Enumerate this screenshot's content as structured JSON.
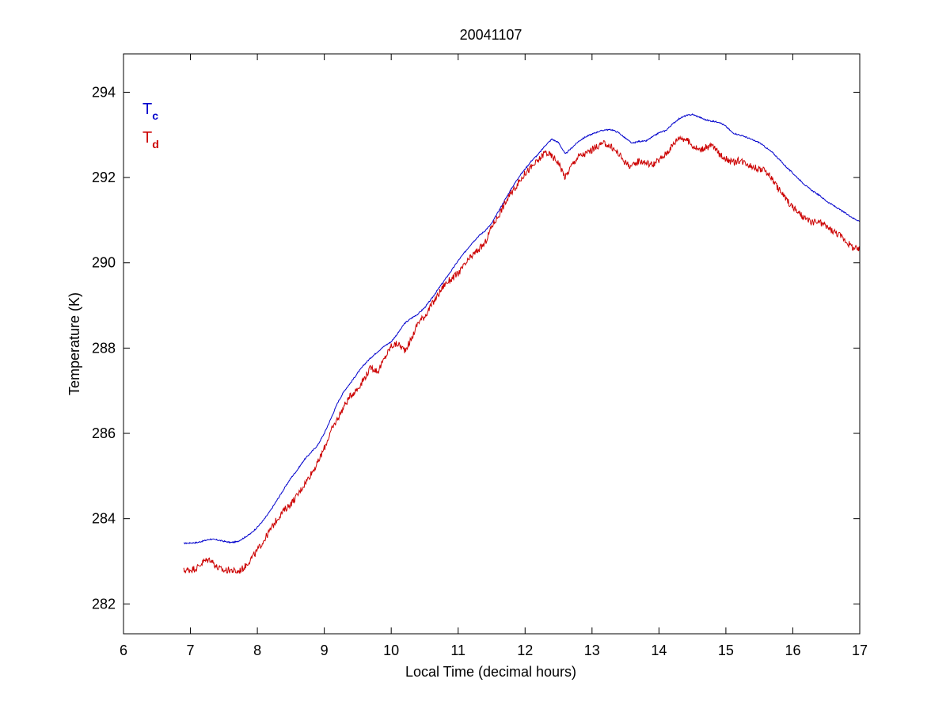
{
  "chart_data": {
    "type": "line",
    "title": "20041107",
    "xlabel": "Local Time (decimal hours)",
    "ylabel": "Temperature (K)",
    "xlim": [
      6,
      17
    ],
    "ylim": [
      281.3,
      294.9
    ],
    "xticks": [
      6,
      7,
      8,
      9,
      10,
      11,
      12,
      13,
      14,
      15,
      16,
      17
    ],
    "yticks": [
      282,
      284,
      286,
      288,
      290,
      292,
      294
    ],
    "xtick_labels": [
      "6",
      "7",
      "8",
      "9",
      "10",
      "11",
      "12",
      "13",
      "14",
      "15",
      "16",
      "17"
    ],
    "ytick_labels": [
      "282",
      "284",
      "286",
      "288",
      "290",
      "292",
      "294"
    ],
    "grid": false,
    "legend_position": "top-left",
    "series": [
      {
        "name": "Tc",
        "label_main": "T",
        "label_sub": "c",
        "color": "#0000cc",
        "x": [
          6.9,
          7.0,
          7.1,
          7.2,
          7.3,
          7.4,
          7.5,
          7.6,
          7.7,
          7.8,
          7.9,
          8.0,
          8.1,
          8.2,
          8.3,
          8.4,
          8.5,
          8.6,
          8.7,
          8.8,
          8.9,
          9.0,
          9.1,
          9.2,
          9.3,
          9.4,
          9.5,
          9.6,
          9.7,
          9.8,
          9.9,
          10.0,
          10.1,
          10.2,
          10.3,
          10.4,
          10.5,
          10.6,
          10.7,
          10.8,
          10.9,
          11.0,
          11.1,
          11.2,
          11.3,
          11.4,
          11.5,
          11.6,
          11.7,
          11.8,
          11.9,
          12.0,
          12.1,
          12.2,
          12.3,
          12.4,
          12.5,
          12.6,
          12.7,
          12.8,
          12.9,
          13.0,
          13.1,
          13.2,
          13.3,
          13.4,
          13.5,
          13.6,
          13.7,
          13.8,
          13.9,
          14.0,
          14.1,
          14.2,
          14.3,
          14.4,
          14.5,
          14.6,
          14.7,
          14.8,
          14.9,
          15.0,
          15.1,
          15.2,
          15.3,
          15.4,
          15.5,
          15.6,
          15.7,
          15.8,
          15.9,
          16.0,
          16.1,
          16.2,
          16.3,
          16.4,
          16.5,
          16.6,
          16.7,
          16.8,
          16.9,
          17.0
        ],
        "values": [
          283.42,
          283.43,
          283.44,
          283.48,
          283.52,
          283.5,
          283.47,
          283.44,
          283.46,
          283.55,
          283.65,
          283.8,
          283.98,
          284.2,
          284.45,
          284.7,
          284.95,
          285.15,
          285.38,
          285.55,
          285.72,
          286.0,
          286.35,
          286.72,
          287.0,
          287.2,
          287.42,
          287.62,
          287.78,
          287.92,
          288.05,
          288.15,
          288.35,
          288.58,
          288.7,
          288.8,
          288.95,
          289.15,
          289.38,
          289.6,
          289.82,
          290.05,
          290.25,
          290.45,
          290.62,
          290.75,
          290.92,
          291.2,
          291.48,
          291.75,
          292.0,
          292.2,
          292.4,
          292.55,
          292.75,
          292.9,
          292.82,
          292.55,
          292.7,
          292.85,
          292.95,
          293.02,
          293.08,
          293.12,
          293.12,
          293.05,
          292.92,
          292.8,
          292.85,
          292.85,
          292.95,
          293.05,
          293.1,
          293.25,
          293.38,
          293.45,
          293.48,
          293.42,
          293.35,
          293.32,
          293.3,
          293.2,
          293.05,
          293.0,
          292.95,
          292.88,
          292.82,
          292.7,
          292.58,
          292.42,
          292.25,
          292.1,
          291.95,
          291.8,
          291.68,
          291.58,
          291.45,
          291.35,
          291.25,
          291.15,
          291.05,
          290.97
        ]
      },
      {
        "name": "Td",
        "label_main": "T",
        "label_sub": "d",
        "color": "#cc0000",
        "x": [
          6.9,
          7.0,
          7.1,
          7.2,
          7.3,
          7.4,
          7.5,
          7.6,
          7.7,
          7.8,
          7.9,
          8.0,
          8.1,
          8.2,
          8.3,
          8.4,
          8.5,
          8.6,
          8.7,
          8.8,
          8.9,
          9.0,
          9.1,
          9.2,
          9.3,
          9.4,
          9.5,
          9.6,
          9.7,
          9.8,
          9.9,
          10.0,
          10.1,
          10.2,
          10.3,
          10.4,
          10.5,
          10.6,
          10.7,
          10.8,
          10.9,
          11.0,
          11.1,
          11.2,
          11.3,
          11.4,
          11.5,
          11.6,
          11.7,
          11.8,
          11.9,
          12.0,
          12.1,
          12.2,
          12.3,
          12.4,
          12.5,
          12.6,
          12.7,
          12.8,
          12.9,
          13.0,
          13.1,
          13.2,
          13.3,
          13.4,
          13.5,
          13.6,
          13.7,
          13.8,
          13.9,
          14.0,
          14.1,
          14.2,
          14.3,
          14.4,
          14.5,
          14.6,
          14.7,
          14.8,
          14.9,
          15.0,
          15.1,
          15.2,
          15.3,
          15.4,
          15.5,
          15.6,
          15.7,
          15.8,
          15.9,
          16.0,
          16.1,
          16.2,
          16.3,
          16.4,
          16.5,
          16.6,
          16.7,
          16.8,
          16.9,
          17.0
        ],
        "values": [
          282.78,
          282.8,
          282.85,
          283.0,
          283.05,
          282.85,
          282.78,
          282.8,
          282.75,
          282.85,
          283.05,
          283.25,
          283.5,
          283.75,
          284.0,
          284.2,
          284.35,
          284.55,
          284.8,
          285.05,
          285.3,
          285.65,
          286.05,
          286.35,
          286.65,
          286.9,
          287.05,
          287.3,
          287.55,
          287.45,
          287.75,
          288.05,
          288.1,
          287.95,
          288.2,
          288.6,
          288.75,
          289.0,
          289.25,
          289.5,
          289.62,
          289.75,
          289.95,
          290.15,
          290.3,
          290.45,
          290.85,
          291.1,
          291.4,
          291.65,
          291.88,
          292.1,
          292.25,
          292.4,
          292.6,
          292.5,
          292.35,
          292.0,
          292.3,
          292.5,
          292.55,
          292.65,
          292.75,
          292.8,
          292.7,
          292.55,
          292.35,
          292.25,
          292.4,
          292.35,
          292.3,
          292.4,
          292.55,
          292.75,
          292.95,
          292.9,
          292.75,
          292.65,
          292.7,
          292.75,
          292.55,
          292.45,
          292.35,
          292.4,
          292.35,
          292.25,
          292.2,
          292.15,
          291.95,
          291.7,
          291.5,
          291.3,
          291.15,
          291.0,
          290.95,
          290.95,
          290.85,
          290.75,
          290.65,
          290.5,
          290.35,
          290.3
        ]
      }
    ]
  }
}
